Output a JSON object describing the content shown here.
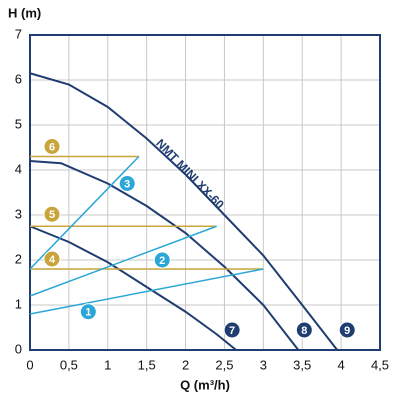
{
  "chart_data": {
    "type": "line",
    "ylabel": "H (m)",
    "xlabel": "Q (m³/h)",
    "annotation": "NMT MINI XX-60",
    "xlim": [
      0,
      4.5
    ],
    "ylim": [
      0,
      7
    ],
    "xticks": [
      0,
      {
        "value": 0.5,
        "label": "0,5"
      },
      1,
      {
        "value": 1.5,
        "label": "1,5"
      },
      2,
      {
        "value": 2.5,
        "label": "2,5"
      },
      3,
      {
        "value": 3.5,
        "label": "3,5"
      },
      4,
      {
        "value": 4.5,
        "label": "4,5"
      }
    ],
    "yticks": [
      0,
      1,
      2,
      3,
      4,
      5,
      6,
      7
    ],
    "grid": true,
    "series": [
      {
        "name": "7",
        "color": "#1f3d70",
        "x": [
          0,
          0.5,
          1,
          1.5,
          2,
          2.4,
          2.65
        ],
        "values": [
          2.75,
          2.4,
          1.95,
          1.4,
          0.85,
          0.35,
          0
        ]
      },
      {
        "name": "8",
        "color": "#1f3d70",
        "x": [
          0,
          0.4,
          1,
          1.5,
          2,
          2.5,
          3,
          3.45
        ],
        "values": [
          4.2,
          4.15,
          3.7,
          3.2,
          2.6,
          1.85,
          1.0,
          0
        ]
      },
      {
        "name": "9",
        "color": "#1f3d70",
        "x": [
          0,
          0.5,
          1,
          1.5,
          2,
          2.5,
          3,
          3.5,
          3.95
        ],
        "values": [
          6.15,
          5.9,
          5.4,
          4.7,
          3.9,
          3.0,
          2.1,
          1.0,
          0
        ]
      },
      {
        "name": "6",
        "color": "#c9a43a",
        "x": [
          0,
          1.4
        ],
        "values": [
          4.3,
          4.3
        ]
      },
      {
        "name": "5",
        "color": "#c9a43a",
        "x": [
          0,
          2.4
        ],
        "values": [
          2.75,
          2.75
        ]
      },
      {
        "name": "4",
        "color": "#c9a43a",
        "x": [
          0,
          3.0
        ],
        "values": [
          1.8,
          1.8
        ]
      },
      {
        "name": "3",
        "color": "#2aa7d6",
        "x": [
          0,
          1.4
        ],
        "values": [
          1.8,
          4.3
        ]
      },
      {
        "name": "2",
        "color": "#2aa7d6",
        "x": [
          0,
          2.4
        ],
        "values": [
          1.2,
          2.75
        ]
      },
      {
        "name": "1",
        "color": "#2aa7d6",
        "x": [
          0,
          3.0
        ],
        "values": [
          0.8,
          1.8
        ]
      }
    ]
  }
}
